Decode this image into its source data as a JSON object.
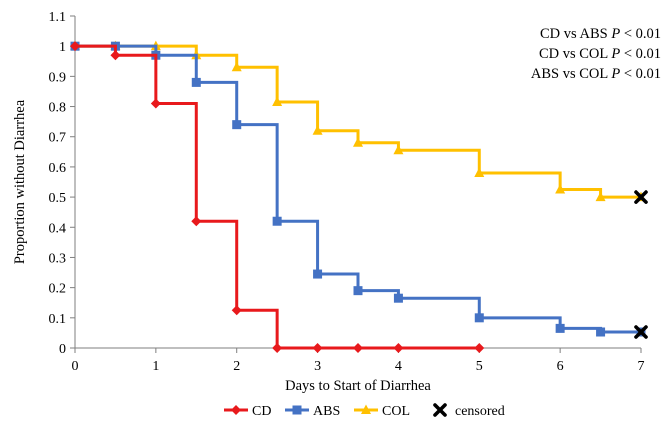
{
  "chart_data": {
    "type": "line",
    "subtype": "step (Kaplan-Meier)",
    "xlabel": "Days to Start of Diarrhea",
    "ylabel": "Proportion without Diarrhea",
    "xlim": [
      0,
      7
    ],
    "ylim": [
      0,
      1.1
    ],
    "xticks": [
      "0",
      "1",
      "2",
      "3",
      "4",
      "5",
      "6",
      "7"
    ],
    "yticks": [
      "0",
      "0.1",
      "0.2",
      "0.3",
      "0.4",
      "0.5",
      "0.6",
      "0.7",
      "0.8",
      "0.9",
      "1",
      "1.1"
    ],
    "grid": false,
    "legend_position": "bottom",
    "series": [
      {
        "name": "CD",
        "color": "#e8191c",
        "marker": "diamond",
        "points": [
          [
            0,
            1.0
          ],
          [
            0.5,
            0.97
          ],
          [
            1,
            0.81
          ],
          [
            1.5,
            0.42
          ],
          [
            2,
            0.125
          ],
          [
            2.5,
            0.0
          ],
          [
            3,
            0.0
          ],
          [
            3.5,
            0.0
          ],
          [
            4,
            0.0
          ],
          [
            5,
            0.0
          ]
        ]
      },
      {
        "name": "ABS",
        "color": "#4472c4",
        "marker": "square",
        "points": [
          [
            0,
            1.0
          ],
          [
            0.5,
            1.0
          ],
          [
            1,
            0.97
          ],
          [
            1.5,
            0.88
          ],
          [
            2,
            0.74
          ],
          [
            2.5,
            0.42
          ],
          [
            3,
            0.245
          ],
          [
            3.5,
            0.19
          ],
          [
            4,
            0.165
          ],
          [
            5,
            0.1
          ],
          [
            6,
            0.065
          ],
          [
            6.5,
            0.053
          ],
          [
            7,
            0.053
          ]
        ]
      },
      {
        "name": "COL",
        "color": "#ffc000",
        "marker": "triangle",
        "points": [
          [
            0,
            1.0
          ],
          [
            0.5,
            1.0
          ],
          [
            1,
            1.0
          ],
          [
            1.5,
            0.97
          ],
          [
            2,
            0.93
          ],
          [
            2.5,
            0.815
          ],
          [
            3,
            0.72
          ],
          [
            3.5,
            0.68
          ],
          [
            4,
            0.655
          ],
          [
            5,
            0.58
          ],
          [
            6,
            0.525
          ],
          [
            6.5,
            0.5
          ],
          [
            7,
            0.5
          ]
        ]
      }
    ],
    "censored": {
      "label": "censored",
      "marker": "x",
      "color": "#000000",
      "points": [
        [
          7,
          0.5
        ],
        [
          7,
          0.053
        ]
      ]
    },
    "annotations": [
      {
        "text": "CD vs ABS",
        "p_symbol": "P",
        "p_value": "< 0.01"
      },
      {
        "text": "CD vs COL",
        "p_symbol": "P",
        "p_value": "< 0.01"
      },
      {
        "text": "ABS vs COL",
        "p_symbol": "P",
        "p_value": "< 0.01"
      }
    ]
  }
}
